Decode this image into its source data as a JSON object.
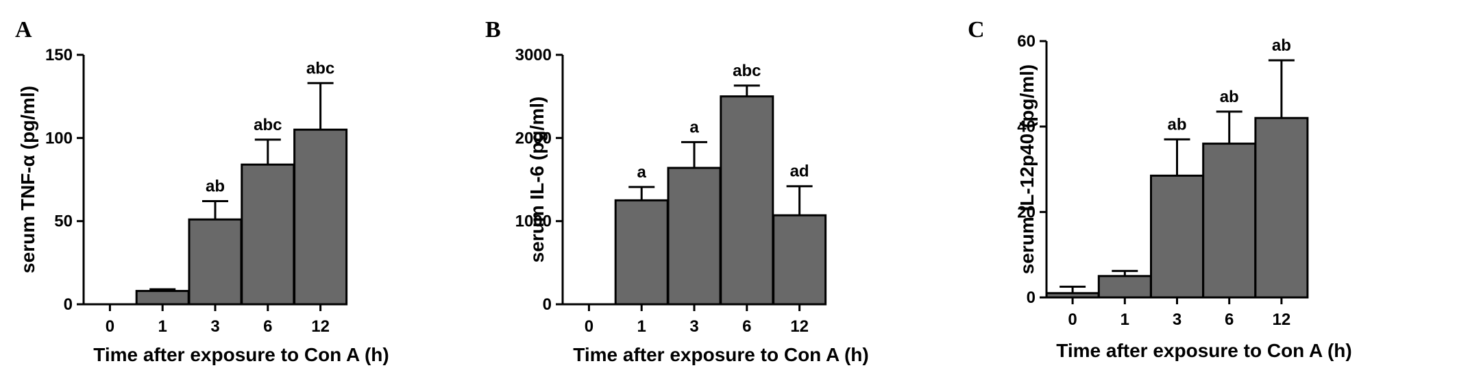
{
  "chart_data": [
    {
      "type": "bar",
      "panel": "A",
      "categories": [
        "0",
        "1",
        "3",
        "6",
        "12"
      ],
      "values": [
        0,
        8,
        51,
        84,
        105
      ],
      "errors": [
        0,
        1,
        11,
        15,
        28
      ],
      "annotations": [
        "",
        "",
        "ab",
        "abc",
        "abc"
      ],
      "ylabel": "serum TNF-α (pg/ml)",
      "xlabel": "Time after exposure to Con A (h)",
      "ylim": [
        0,
        150
      ],
      "yticks": [
        "0",
        "50",
        "100",
        "150"
      ],
      "bar_color": "#696969",
      "grid": false
    },
    {
      "type": "bar",
      "panel": "B",
      "categories": [
        "0",
        "1",
        "3",
        "6",
        "12"
      ],
      "values": [
        0,
        1250,
        1640,
        2500,
        1070
      ],
      "errors": [
        0,
        160,
        310,
        130,
        350
      ],
      "annotations": [
        "",
        "a",
        "a",
        "abc",
        "ad"
      ],
      "ylabel": "serum IL-6 (pg/ml)",
      "xlabel": "Time after exposure to Con A (h)",
      "ylim": [
        0,
        3000
      ],
      "yticks": [
        "0",
        "1000",
        "2000",
        "3000"
      ],
      "bar_color": "#696969",
      "grid": false
    },
    {
      "type": "bar",
      "panel": "C",
      "categories": [
        "0",
        "1",
        "3",
        "6",
        "12"
      ],
      "values": [
        1,
        5,
        28.5,
        36,
        42
      ],
      "errors": [
        1.5,
        1.2,
        8.5,
        7.5,
        13.5
      ],
      "annotations": [
        "",
        "",
        "ab",
        "ab",
        "ab"
      ],
      "ylabel": "serum IL-12p40 (pg/ml)",
      "xlabel": "Time after exposure to Con A (h)",
      "ylim": [
        0,
        60
      ],
      "yticks": [
        "0",
        "20",
        "40",
        "60"
      ],
      "bar_color": "#696969",
      "grid": false
    }
  ]
}
